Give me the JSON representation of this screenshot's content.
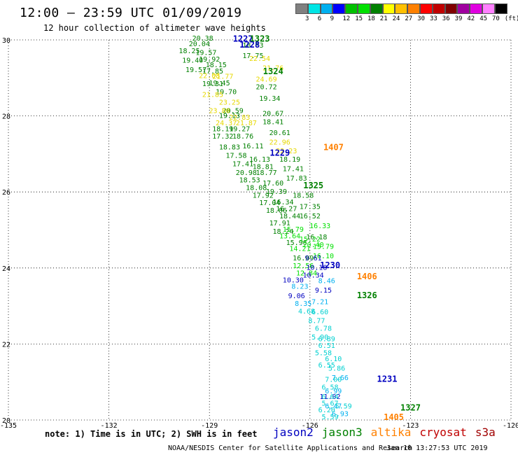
{
  "header": {
    "title": "12:00 – 23:59 UTC 01/09/2019",
    "subtitle": "12 hour collection of altimeter wave heights"
  },
  "colorbar": {
    "colors": [
      "#808080",
      "#00e5e5",
      "#00b0f0",
      "#0000ff",
      "#00c000",
      "#00e000",
      "#008000",
      "#ffff00",
      "#ffc000",
      "#ff8000",
      "#ff0000",
      "#c00000",
      "#800000",
      "#a000a0",
      "#e000e0",
      "#ff80ff",
      "#000000"
    ],
    "labels": [
      "3",
      "6",
      "9",
      "12",
      "15",
      "18",
      "21",
      "24",
      "27",
      "30",
      "33",
      "36",
      "39",
      "42",
      "45",
      "70",
      "(ft)"
    ]
  },
  "axes": {
    "lon_ticks": [
      "-135",
      "-132",
      "-129",
      "-126",
      "-123",
      "-120"
    ],
    "lat_ticks": [
      "30",
      "28",
      "26",
      "24",
      "22",
      "20"
    ],
    "xlim": [
      -135,
      -120
    ],
    "ylim": [
      20,
      30
    ]
  },
  "passes": [
    {
      "label": "1227",
      "lon": -128.3,
      "lat": 29.95,
      "color": "#0000c0"
    },
    {
      "label": "1323",
      "lon": -127.8,
      "lat": 29.95,
      "color": "#008000"
    },
    {
      "label": "1228",
      "lon": -128.1,
      "lat": 29.8,
      "color": "#0000c0"
    },
    {
      "label": "1324",
      "lon": -127.4,
      "lat": 29.1,
      "color": "#008000"
    },
    {
      "label": "1407",
      "lon": -125.6,
      "lat": 27.1,
      "color": "#ff8000"
    },
    {
      "label": "1229",
      "lon": -127.2,
      "lat": 26.95,
      "color": "#0000c0"
    },
    {
      "label": "1325",
      "lon": -126.2,
      "lat": 26.1,
      "color": "#008000"
    },
    {
      "label": "1230",
      "lon": -125.7,
      "lat": 24.0,
      "color": "#0000c0"
    },
    {
      "label": "1406",
      "lon": -124.6,
      "lat": 23.7,
      "color": "#ff8000"
    },
    {
      "label": "1326",
      "lon": -124.6,
      "lat": 23.2,
      "color": "#008000"
    },
    {
      "label": "1231",
      "lon": -124.0,
      "lat": 21.0,
      "color": "#0000c0"
    },
    {
      "label": "1327",
      "lon": -123.3,
      "lat": 20.25,
      "color": "#008000"
    },
    {
      "label": "1405",
      "lon": -123.8,
      "lat": 20.0,
      "color": "#ff8000"
    }
  ],
  "tracks": [
    {
      "color": "#008000",
      "points": [
        {
          "lon": -129.2,
          "lat": 29.98,
          "v": "20.38"
        },
        {
          "lon": -129.3,
          "lat": 29.83,
          "v": "20.04"
        },
        {
          "lon": -129.1,
          "lat": 29.6,
          "v": "19.57"
        },
        {
          "lon": -129.0,
          "lat": 29.43,
          "v": "19.92"
        },
        {
          "lon": -128.8,
          "lat": 29.28,
          "v": "18.15"
        },
        {
          "lon": -128.7,
          "lat": 28.8,
          "v": "19.45"
        },
        {
          "lon": -128.5,
          "lat": 28.57,
          "v": "19.70"
        },
        {
          "lon": -128.3,
          "lat": 28.08,
          "v": "20.59"
        },
        {
          "lon": -128.1,
          "lat": 27.6,
          "v": "19.27"
        },
        {
          "lon": -128.0,
          "lat": 27.4,
          "v": "18.76"
        },
        {
          "lon": -127.7,
          "lat": 27.15,
          "v": "16.11"
        },
        {
          "lon": -127.5,
          "lat": 26.8,
          "v": "16.13"
        },
        {
          "lon": -127.4,
          "lat": 26.6,
          "v": "18.81"
        },
        {
          "lon": -127.3,
          "lat": 26.45,
          "v": "18.77"
        },
        {
          "lon": -127.1,
          "lat": 26.17,
          "v": "17.60"
        },
        {
          "lon": -127.0,
          "lat": 25.95,
          "v": "19.39"
        },
        {
          "lon": -126.8,
          "lat": 25.67,
          "v": "16.34"
        },
        {
          "lon": -126.7,
          "lat": 25.5,
          "v": "16.27"
        },
        {
          "lon": -126.6,
          "lat": 25.3,
          "v": "18.44"
        },
        {
          "lon": -129.6,
          "lat": 29.65,
          "v": "18.25"
        },
        {
          "lon": -129.5,
          "lat": 29.4,
          "v": "19.40"
        },
        {
          "lon": -129.4,
          "lat": 29.15,
          "v": "19.57"
        },
        {
          "lon": -128.9,
          "lat": 28.78,
          "v": "19.31"
        },
        {
          "lon": -128.4,
          "lat": 27.95,
          "v": "19.13"
        },
        {
          "lon": -128.6,
          "lat": 27.6,
          "v": "18.19"
        },
        {
          "lon": -128.6,
          "lat": 27.4,
          "v": "17.32"
        },
        {
          "lon": -128.4,
          "lat": 27.12,
          "v": "18.83"
        },
        {
          "lon": -128.2,
          "lat": 26.9,
          "v": "17.58"
        },
        {
          "lon": -128.0,
          "lat": 26.68,
          "v": "17.41"
        },
        {
          "lon": -127.9,
          "lat": 26.45,
          "v": "20.98"
        },
        {
          "lon": -127.8,
          "lat": 26.25,
          "v": "18.53"
        },
        {
          "lon": -127.6,
          "lat": 26.05,
          "v": "18.08"
        },
        {
          "lon": -127.4,
          "lat": 25.85,
          "v": "17.92"
        },
        {
          "lon": -127.2,
          "lat": 25.65,
          "v": "17.04"
        },
        {
          "lon": -127.0,
          "lat": 25.45,
          "v": "18.06"
        },
        {
          "lon": -126.9,
          "lat": 25.12,
          "v": "17.91"
        },
        {
          "lon": -126.8,
          "lat": 24.9,
          "v": "18.24"
        },
        {
          "lon": -126.4,
          "lat": 24.6,
          "v": "15.96"
        },
        {
          "lon": -126.2,
          "lat": 24.2,
          "v": "16.09"
        },
        {
          "lon": -127.7,
          "lat": 29.8,
          "v": "18.03"
        },
        {
          "lon": -127.7,
          "lat": 29.52,
          "v": "17.75"
        },
        {
          "lon": -127.3,
          "lat": 28.7,
          "v": "20.72"
        },
        {
          "lon": -127.2,
          "lat": 28.4,
          "v": "19.34"
        },
        {
          "lon": -127.1,
          "lat": 28.0,
          "v": "20.67"
        },
        {
          "lon": -127.1,
          "lat": 27.78,
          "v": "18.41"
        },
        {
          "lon": -126.9,
          "lat": 27.5,
          "v": "20.61"
        },
        {
          "lon": -126.6,
          "lat": 26.8,
          "v": "18.19"
        },
        {
          "lon": -126.5,
          "lat": 26.55,
          "v": "17.41"
        },
        {
          "lon": -126.4,
          "lat": 26.3,
          "v": "17.83"
        },
        {
          "lon": -126.2,
          "lat": 25.85,
          "v": "18.58"
        },
        {
          "lon": -126.0,
          "lat": 25.55,
          "v": "17.35"
        },
        {
          "lon": -126.0,
          "lat": 25.3,
          "v": "16.52"
        },
        {
          "lon": -125.8,
          "lat": 24.75,
          "v": "16.18"
        },
        {
          "lon": -128.9,
          "lat": 29.12,
          "v": "17.85"
        }
      ]
    },
    {
      "color": "#00e000",
      "points": [
        {
          "lon": -125.7,
          "lat": 25.05,
          "v": "16.33"
        },
        {
          "lon": -125.6,
          "lat": 24.5,
          "v": "15.79"
        },
        {
          "lon": -125.6,
          "lat": 24.25,
          "v": "16.10"
        },
        {
          "lon": -126.5,
          "lat": 24.95,
          "v": "15.79"
        },
        {
          "lon": -126.6,
          "lat": 24.78,
          "v": "13.64"
        },
        {
          "lon": -126.3,
          "lat": 24.45,
          "v": "14.21"
        },
        {
          "lon": -125.9,
          "lat": 24.55,
          "v": "20.40"
        },
        {
          "lon": -126.2,
          "lat": 24.0,
          "v": "12.56"
        },
        {
          "lon": -126.1,
          "lat": 23.8,
          "v": "12.84"
        },
        {
          "lon": -126.0,
          "lat": 24.7,
          "v": "15.22"
        }
      ]
    },
    {
      "color": "#0000c0",
      "points": [
        {
          "lon": -125.9,
          "lat": 24.2,
          "v": "9.61"
        },
        {
          "lon": -125.8,
          "lat": 23.95,
          "v": "10.18"
        },
        {
          "lon": -125.9,
          "lat": 23.75,
          "v": "10.34"
        },
        {
          "lon": -126.5,
          "lat": 23.62,
          "v": "10.30"
        },
        {
          "lon": -125.6,
          "lat": 23.35,
          "v": "9.15"
        },
        {
          "lon": -126.4,
          "lat": 23.2,
          "v": "9.06"
        },
        {
          "lon": -125.4,
          "lat": 20.55,
          "v": "11.02"
        }
      ]
    },
    {
      "color": "#00b0f0",
      "points": [
        {
          "lon": -126.3,
          "lat": 23.45,
          "v": "8.23"
        },
        {
          "lon": -125.5,
          "lat": 23.6,
          "v": "8.46"
        },
        {
          "lon": -126.2,
          "lat": 23.0,
          "v": "8.35"
        },
        {
          "lon": -125.7,
          "lat": 23.05,
          "v": "7.21"
        },
        {
          "lon": -125.1,
          "lat": 21.05,
          "v": "7.66"
        },
        {
          "lon": -125.3,
          "lat": 20.3,
          "v": "6.47"
        },
        {
          "lon": -125.1,
          "lat": 20.1,
          "v": "6.93"
        },
        {
          "lon": -125.3,
          "lat": 20.7,
          "v": "6.99"
        }
      ]
    },
    {
      "color": "#00d0d0",
      "points": [
        {
          "lon": -126.1,
          "lat": 22.8,
          "v": "4.68"
        },
        {
          "lon": -125.7,
          "lat": 22.78,
          "v": "6.60"
        },
        {
          "lon": -125.8,
          "lat": 22.55,
          "v": "8.77"
        },
        {
          "lon": -125.6,
          "lat": 22.35,
          "v": "6.78"
        },
        {
          "lon": -125.7,
          "lat": 22.12,
          "v": "5.90"
        },
        {
          "lon": -125.5,
          "lat": 22.07,
          "v": "6.89"
        },
        {
          "lon": -125.5,
          "lat": 21.9,
          "v": "6.51"
        },
        {
          "lon": -125.6,
          "lat": 21.7,
          "v": "5.58"
        },
        {
          "lon": -125.3,
          "lat": 21.55,
          "v": "6.10"
        },
        {
          "lon": -125.5,
          "lat": 21.38,
          "v": "6.55"
        },
        {
          "lon": -125.2,
          "lat": 21.3,
          "v": "5.86"
        },
        {
          "lon": -125.3,
          "lat": 21.0,
          "v": "7.00"
        },
        {
          "lon": -125.4,
          "lat": 20.8,
          "v": "6.58"
        },
        {
          "lon": -125.4,
          "lat": 20.55,
          "v": "6.64"
        },
        {
          "lon": -125.4,
          "lat": 20.38,
          "v": "5.67"
        },
        {
          "lon": -125.5,
          "lat": 20.2,
          "v": "6.20"
        },
        {
          "lon": -125.4,
          "lat": 20.02,
          "v": "5.59"
        },
        {
          "lon": -125.0,
          "lat": 20.3,
          "v": "5.59"
        }
      ]
    },
    {
      "color": "#e6d800",
      "points": [
        {
          "lon": -127.1,
          "lat": 29.2,
          "v": "21.76"
        },
        {
          "lon": -127.5,
          "lat": 29.45,
          "v": "22.54"
        },
        {
          "lon": -127.3,
          "lat": 28.9,
          "v": "24.69"
        },
        {
          "lon": -129.0,
          "lat": 29.0,
          "v": "22.08"
        },
        {
          "lon": -128.6,
          "lat": 28.98,
          "v": "21.77"
        },
        {
          "lon": -128.9,
          "lat": 28.5,
          "v": "21.85"
        },
        {
          "lon": -128.4,
          "lat": 28.3,
          "v": "23.25"
        },
        {
          "lon": -128.7,
          "lat": 28.08,
          "v": "23.80"
        },
        {
          "lon": -128.1,
          "lat": 27.9,
          "v": "22.83"
        },
        {
          "lon": -128.5,
          "lat": 27.75,
          "v": "24.37"
        },
        {
          "lon": -127.9,
          "lat": 27.75,
          "v": "21.87"
        },
        {
          "lon": -126.9,
          "lat": 27.25,
          "v": "22.96"
        },
        {
          "lon": -126.7,
          "lat": 27.02,
          "v": "22.23"
        }
      ]
    }
  ],
  "note": "note: 1) Time is in UTC; 2) SWH is in feet",
  "legend": [
    {
      "label": "jason2",
      "color": "#0000c0"
    },
    {
      "label": "jason3",
      "color": "#008000"
    },
    {
      "label": "altika",
      "color": "#ff8000"
    },
    {
      "label": "cryosat",
      "color": "#c00000"
    },
    {
      "label": "s3a",
      "color": "#a00000"
    }
  ],
  "footer": {
    "credit": "NOAA/NESDIS Center for Satellite Applications and Research",
    "timestamp": "Jan 10 13:27:53 UTC 2019"
  }
}
